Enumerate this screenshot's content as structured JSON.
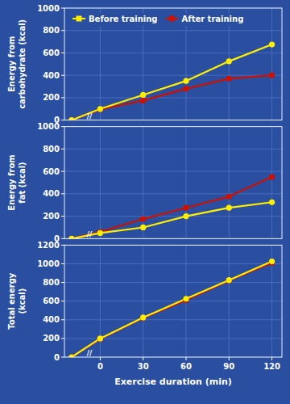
{
  "chart_data": [
    {
      "type": "line",
      "ylabel": "Energy from\ncarbohydrate (kcal)",
      "x": [
        -20,
        0,
        30,
        60,
        90,
        120
      ],
      "series": [
        {
          "name": "Before training",
          "color": "#ffee00",
          "values": [
            0,
            100,
            225,
            350,
            525,
            675
          ]
        },
        {
          "name": "After training",
          "color": "#cc1100",
          "values": [
            0,
            95,
            175,
            280,
            370,
            400
          ]
        }
      ],
      "xlim": [
        -25,
        127
      ],
      "xticks": [
        0,
        30,
        60,
        90,
        120
      ],
      "ylim": [
        0,
        1000
      ],
      "yticks": [
        0,
        200,
        400,
        600,
        800,
        1000
      ],
      "grid": true,
      "legend": "upper left",
      "tick_labels": "y",
      "marker": "circle",
      "annotations": [
        {
          "text": "//",
          "x": -7.5,
          "y": 0
        }
      ]
    },
    {
      "type": "line",
      "ylabel": "Energy from\nfat (kcal)",
      "x": [
        -20,
        0,
        30,
        60,
        90,
        120
      ],
      "series": [
        {
          "color": "#ffee00",
          "values": [
            0,
            50,
            100,
            200,
            275,
            325
          ]
        },
        {
          "color": "#cc1100",
          "values": [
            0,
            60,
            175,
            275,
            375,
            550
          ]
        }
      ],
      "xlim": [
        -25,
        127
      ],
      "xticks": [
        0,
        30,
        60,
        90,
        120
      ],
      "ylim": [
        0,
        1000
      ],
      "yticks": [
        0,
        200,
        400,
        600,
        800,
        1000
      ],
      "grid": true,
      "tick_labels": "y",
      "marker": "circle",
      "annotations": [
        {
          "text": "//",
          "x": -7.5,
          "y": 0
        }
      ]
    },
    {
      "type": "line",
      "ylabel": "Total energy\n(kcal)",
      "xlabel": "Exercise duration (min)",
      "x": [
        -20,
        0,
        30,
        60,
        90,
        120
      ],
      "series": [
        {
          "color": "#ffee00",
          "values": [
            0,
            200,
            425,
            625,
            825,
            1025
          ]
        },
        {
          "color": "#cc1100",
          "values": [
            0,
            195,
            420,
            610,
            820,
            1010
          ]
        }
      ],
      "xlim": [
        -25,
        127
      ],
      "xticks": [
        0,
        30,
        60,
        90,
        120
      ],
      "ylim": [
        0,
        1200
      ],
      "yticks": [
        0,
        200,
        400,
        600,
        800,
        1000,
        1200
      ],
      "grid": true,
      "marker": "circle",
      "annotations": [
        {
          "text": "//",
          "x": -7.5,
          "y": 0
        }
      ]
    }
  ]
}
